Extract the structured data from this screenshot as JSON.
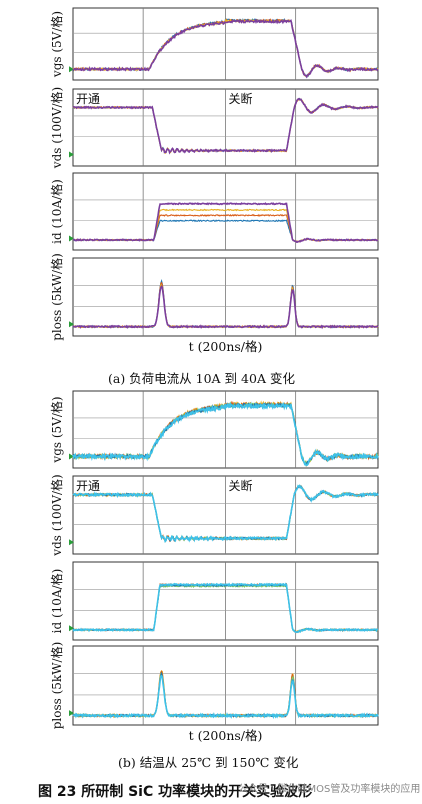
{
  "figure": {
    "title": "图 23   所研制 SiC 功率模块的开关实验波形",
    "watermark": "公众号 · 碳化硅MOS管及功率模块的应用"
  },
  "chart_data": [
    {
      "type": "line",
      "group": "a",
      "caption": "(a)  负荷电流从 10A 到 40A 变化",
      "xlabel": "t (200ns/格)",
      "series_colors": [
        "#1f77b4",
        "#d95f1a",
        "#e8b020",
        "#7b3f9e"
      ],
      "panels": [
        {
          "name": "vgs",
          "ylabel": "vgs (5V/格)",
          "annotations": []
        },
        {
          "name": "vds",
          "ylabel": "vds (100V/格)",
          "annotations": [
            "开通",
            "关断"
          ]
        },
        {
          "name": "id",
          "ylabel": "id (10A/格)",
          "annotations": []
        },
        {
          "name": "ploss",
          "ylabel": "ploss (5kW/格)",
          "annotations": []
        }
      ]
    },
    {
      "type": "line",
      "group": "b",
      "caption": "(b)  结温从 25℃ 到 150℃ 变化",
      "xlabel": "t (200ns/格)",
      "series_colors": [
        "#e8b020",
        "#d95f1a",
        "#7bc96f",
        "#1f77b4",
        "#3ec1e8"
      ],
      "panels": [
        {
          "name": "vgs",
          "ylabel": "vgs (5V/格)",
          "annotations": []
        },
        {
          "name": "vds",
          "ylabel": "vds (100V/格)",
          "annotations": [
            "开通",
            "关断"
          ]
        },
        {
          "name": "id",
          "ylabel": "id (10A/格)",
          "annotations": []
        },
        {
          "name": "ploss",
          "ylabel": "ploss (5kW/格)",
          "annotations": []
        }
      ]
    }
  ]
}
